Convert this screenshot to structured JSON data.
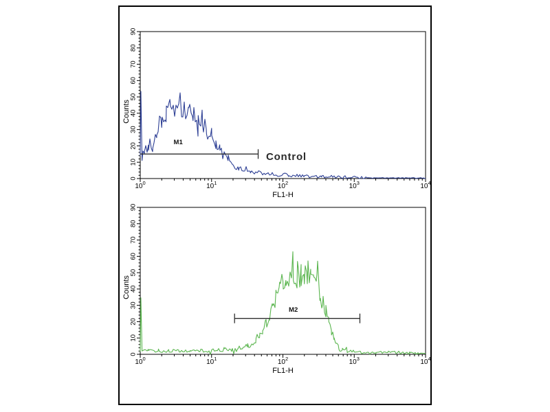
{
  "frame": {
    "border_color": "#000000",
    "background": "#ffffff"
  },
  "chart_data": [
    {
      "type": "line",
      "title": "",
      "xlabel": "FL1-H",
      "ylabel": "Counts",
      "x_scale": "log",
      "x_range": [
        1,
        10000
      ],
      "x_tick_exponents": [
        "0",
        "1",
        "2",
        "3",
        "4"
      ],
      "y_range": [
        0,
        90
      ],
      "y_ticks": [
        0,
        10,
        20,
        30,
        40,
        50,
        60,
        70,
        80,
        90
      ],
      "grid": false,
      "legend": "none",
      "series": [
        {
          "name": "control-histogram",
          "color": "#2c3e94",
          "anchors": [
            [
              1.0,
              12
            ],
            [
              1.02,
              51
            ],
            [
              1.06,
              13
            ],
            [
              1.15,
              16
            ],
            [
              1.3,
              19
            ],
            [
              1.5,
              23
            ],
            [
              1.7,
              27
            ],
            [
              2.0,
              34
            ],
            [
              2.3,
              39
            ],
            [
              2.6,
              43
            ],
            [
              3.0,
              46
            ],
            [
              3.4,
              47
            ],
            [
              3.8,
              44
            ],
            [
              4.2,
              42
            ],
            [
              4.8,
              40
            ],
            [
              5.5,
              38
            ],
            [
              6.5,
              36
            ],
            [
              7.5,
              33
            ],
            [
              8.5,
              30
            ],
            [
              10,
              26
            ],
            [
              11.5,
              22
            ],
            [
              13,
              18
            ],
            [
              15,
              14
            ],
            [
              17,
              11
            ],
            [
              20,
              8
            ],
            [
              24,
              6
            ],
            [
              28,
              5
            ],
            [
              35,
              4
            ],
            [
              45,
              3.5
            ],
            [
              60,
              3
            ],
            [
              80,
              2.5
            ],
            [
              120,
              2
            ],
            [
              200,
              1.5
            ],
            [
              350,
              1.5
            ],
            [
              500,
              1
            ],
            [
              700,
              0.8
            ],
            [
              1500,
              0.5
            ],
            [
              3000,
              0.4
            ],
            [
              6000,
              0.3
            ],
            [
              10000,
              0.3
            ]
          ]
        }
      ],
      "marker": {
        "label": "M1",
        "level": 15,
        "from": 1,
        "to": 45,
        "tick_from": false,
        "tick_to": true,
        "label_x": 3.4,
        "label_y": 21,
        "color": "#2e2e2e"
      },
      "annotation": {
        "text": "Control",
        "x": 58,
        "y": 13,
        "color": "#2b2b2b",
        "font_size": 15
      }
    },
    {
      "type": "line",
      "title": "",
      "xlabel": "FL1-H",
      "ylabel": "Counts",
      "x_scale": "log",
      "x_range": [
        1,
        10000
      ],
      "x_tick_exponents": [
        "0",
        "1",
        "2",
        "3",
        "4"
      ],
      "y_range": [
        0,
        90
      ],
      "y_ticks": [
        0,
        10,
        20,
        30,
        40,
        50,
        60,
        70,
        80,
        90
      ],
      "grid": false,
      "legend": "none",
      "series": [
        {
          "name": "antibody-stained-histogram",
          "color": "#5ab54e",
          "anchors": [
            [
              1.0,
              2
            ],
            [
              1.02,
              38
            ],
            [
              1.06,
              3
            ],
            [
              1.3,
              2
            ],
            [
              1.8,
              2.5
            ],
            [
              2.5,
              2
            ],
            [
              3.5,
              2.5
            ],
            [
              5,
              2
            ],
            [
              7,
              2.5
            ],
            [
              9,
              2
            ],
            [
              12,
              2.5
            ],
            [
              15,
              3
            ],
            [
              19,
              3
            ],
            [
              23,
              3.5
            ],
            [
              27,
              4
            ],
            [
              32,
              5
            ],
            [
              37,
              7
            ],
            [
              42,
              9
            ],
            [
              47,
              12
            ],
            [
              52,
              15
            ],
            [
              58,
              19
            ],
            [
              65,
              24
            ],
            [
              72,
              29
            ],
            [
              80,
              34
            ],
            [
              90,
              40
            ],
            [
              100,
              46
            ],
            [
              110,
              50
            ],
            [
              125,
              48
            ],
            [
              140,
              51
            ],
            [
              160,
              49
            ],
            [
              180,
              47
            ],
            [
              200,
              50
            ],
            [
              220,
              52
            ],
            [
              245,
              50
            ],
            [
              270,
              48
            ],
            [
              300,
              43
            ],
            [
              330,
              38
            ],
            [
              360,
              32
            ],
            [
              400,
              26
            ],
            [
              440,
              20
            ],
            [
              480,
              14
            ],
            [
              520,
              10
            ],
            [
              560,
              7
            ],
            [
              610,
              4
            ],
            [
              680,
              2.5
            ],
            [
              800,
              2
            ],
            [
              1000,
              1.5
            ],
            [
              1400,
              1
            ],
            [
              2000,
              1
            ],
            [
              3000,
              1
            ],
            [
              4500,
              1.2
            ],
            [
              6000,
              0.8
            ],
            [
              8000,
              0.5
            ],
            [
              10000,
              0.4
            ]
          ]
        }
      ],
      "marker": {
        "label": "M2",
        "level": 22,
        "from": 21,
        "to": 1200,
        "tick_from": true,
        "tick_to": true,
        "label_x": 140,
        "label_y": 26,
        "color": "#2e2e2e"
      },
      "annotation": null
    }
  ]
}
